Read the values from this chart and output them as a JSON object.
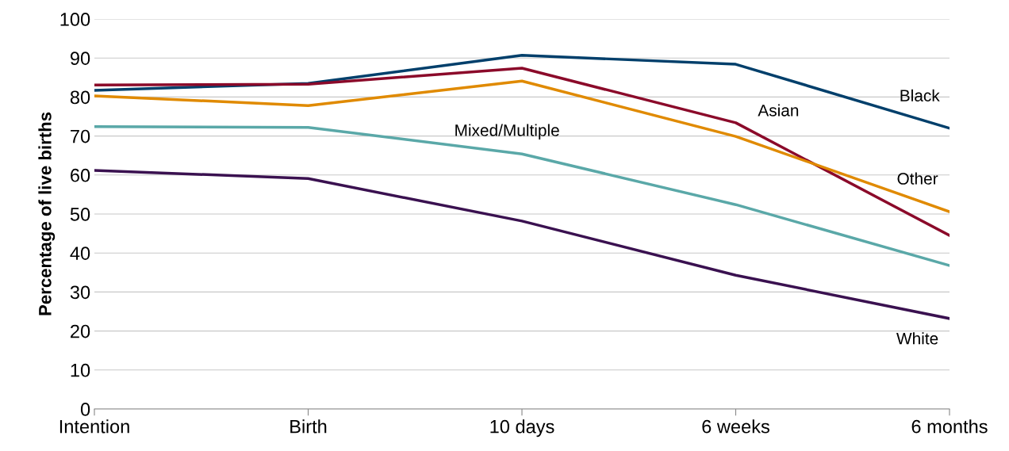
{
  "chart_data": {
    "type": "line",
    "ylabel": "Percentage of live births",
    "categories": [
      "Intention",
      "Birth",
      "10 days",
      "6 weeks",
      "6 months"
    ],
    "series": [
      {
        "name": "Black",
        "color": "#003f6b",
        "values": [
          81.7,
          83.5,
          90.7,
          88.4,
          72.0
        ]
      },
      {
        "name": "Asian",
        "color": "#8b0a2a",
        "values": [
          83.1,
          83.3,
          87.4,
          73.4,
          44.5
        ]
      },
      {
        "name": "Other",
        "color": "#e08a00",
        "values": [
          80.3,
          77.8,
          84.1,
          69.9,
          50.6
        ]
      },
      {
        "name": "Mixed/Multiple",
        "color": "#5aa8a8",
        "values": [
          72.4,
          72.2,
          65.4,
          52.4,
          36.8
        ]
      },
      {
        "name": "White",
        "color": "#3a1150",
        "values": [
          61.2,
          59.1,
          48.2,
          34.3,
          23.2
        ]
      }
    ],
    "ylim": [
      0,
      100
    ],
    "yticks": [
      0,
      10,
      20,
      30,
      40,
      50,
      60,
      70,
      80,
      90,
      100
    ],
    "grid": "y",
    "legend": false,
    "marker": "none",
    "line_style": "solid"
  }
}
